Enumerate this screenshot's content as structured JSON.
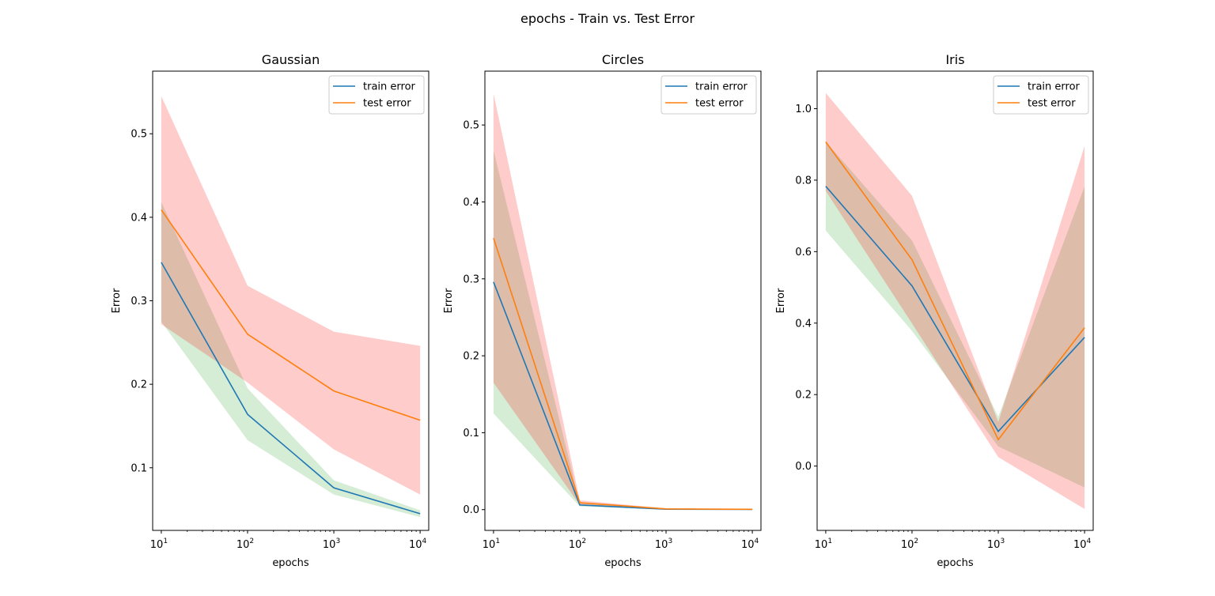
{
  "figure": {
    "title": "epochs - Train vs. Test Error"
  },
  "chart_data": [
    {
      "type": "line",
      "title": "Gaussian",
      "xlabel": "epochs",
      "ylabel": "Error",
      "xscale": "log",
      "x": [
        10,
        100,
        1000,
        10000
      ],
      "x_ticks": [
        1,
        2,
        3,
        4
      ],
      "y_ticks": [
        "0.1",
        "0.2",
        "0.3",
        "0.4",
        "0.5"
      ],
      "ylim": [
        0.025,
        0.575
      ],
      "legend_position": "upper-right",
      "series": [
        {
          "name": "train error",
          "values": [
            0.346,
            0.164,
            0.076,
            0.045
          ],
          "band_lower": [
            0.275,
            0.133,
            0.068,
            0.041
          ],
          "band_upper": [
            0.418,
            0.195,
            0.085,
            0.049
          ],
          "color": "#1f77b4",
          "band_color": "#2ca02c"
        },
        {
          "name": "test error",
          "values": [
            0.409,
            0.26,
            0.192,
            0.157
          ],
          "band_lower": [
            0.272,
            0.202,
            0.122,
            0.068
          ],
          "band_upper": [
            0.545,
            0.318,
            0.263,
            0.246
          ],
          "color": "#ff7f0e",
          "band_color": "#ff0000"
        }
      ]
    },
    {
      "type": "line",
      "title": "Circles",
      "xlabel": "epochs",
      "ylabel": "Error",
      "xscale": "log",
      "x": [
        10,
        100,
        1000,
        10000
      ],
      "x_ticks": [
        1,
        2,
        3,
        4
      ],
      "y_ticks": [
        "0.0",
        "0.1",
        "0.2",
        "0.3",
        "0.4",
        "0.5"
      ],
      "ylim": [
        -0.027,
        0.57
      ],
      "legend_position": "upper-right",
      "series": [
        {
          "name": "train error",
          "values": [
            0.296,
            0.006,
            0.0005,
            0.0002
          ],
          "band_lower": [
            0.125,
            0.004,
            0.0003,
            0.0001
          ],
          "band_upper": [
            0.467,
            0.008,
            0.0008,
            0.0003
          ],
          "color": "#1f77b4",
          "band_color": "#2ca02c"
        },
        {
          "name": "test error",
          "values": [
            0.353,
            0.009,
            0.001,
            0.0004
          ],
          "band_lower": [
            0.165,
            0.006,
            0.0005,
            0.0002
          ],
          "band_upper": [
            0.541,
            0.012,
            0.0015,
            0.0006
          ],
          "color": "#ff7f0e",
          "band_color": "#ff0000"
        }
      ]
    },
    {
      "type": "line",
      "title": "Iris",
      "xlabel": "epochs",
      "ylabel": "Error",
      "xscale": "log",
      "x": [
        10,
        100,
        1000,
        10000
      ],
      "x_ticks": [
        1,
        2,
        3,
        4
      ],
      "y_ticks": [
        "0.0",
        "0.2",
        "0.4",
        "0.6",
        "0.8",
        "1.0"
      ],
      "ylim": [
        -0.18,
        1.105
      ],
      "legend_position": "upper-right",
      "series": [
        {
          "name": "train error",
          "values": [
            0.783,
            0.504,
            0.097,
            0.36
          ],
          "band_lower": [
            0.659,
            0.378,
            0.055,
            -0.06
          ],
          "band_upper": [
            0.908,
            0.631,
            0.138,
            0.782
          ],
          "color": "#1f77b4",
          "band_color": "#2ca02c"
        },
        {
          "name": "test error",
          "values": [
            0.907,
            0.577,
            0.074,
            0.387
          ],
          "band_lower": [
            0.77,
            0.399,
            0.025,
            -0.12
          ],
          "band_upper": [
            1.044,
            0.756,
            0.123,
            0.895
          ],
          "color": "#ff7f0e",
          "band_color": "#ff0000"
        }
      ]
    }
  ]
}
